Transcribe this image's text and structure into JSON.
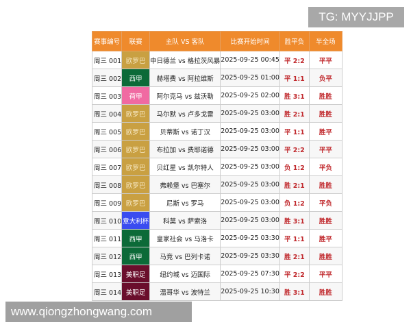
{
  "banner_tg": "TG: MYYJJPP",
  "banner_site": "www.qiongzhongwang.com",
  "colors": {
    "header": "#ef8a2c",
    "欧罗巴": "#c9a042",
    "西甲": "#0c6a38",
    "荷甲": "#f06aa2",
    "意大利杯": "#3a4cf0",
    "美职足": "#6a0e2c"
  },
  "headers": [
    "赛事编号",
    "联赛",
    "主队 VS 客队",
    "比赛开始时间",
    "胜平负",
    "半全场"
  ],
  "rows": [
    [
      "周三 001",
      "欧罗巴",
      "中日德兰 vs 格拉茨风暴",
      "2025-09-25 00:45",
      "平 2:2",
      "平平"
    ],
    [
      "周三 002",
      "西甲",
      "赫塔费 vs 阿拉维斯",
      "2025-09-25 01:00",
      "平 1:1",
      "负平"
    ],
    [
      "周三 003",
      "荷甲",
      "阿尔克马 vs 兹沃勒",
      "2025-09-25 02:00",
      "胜 3:1",
      "胜胜"
    ],
    [
      "周三 004",
      "欧罗巴",
      "马尔默 vs 卢多戈雷",
      "2025-09-25 03:00",
      "胜 2:1",
      "胜胜"
    ],
    [
      "周三 005",
      "欧罗巴",
      "贝蒂斯 vs 诺丁汉",
      "2025-09-25 03:00",
      "平 1:1",
      "胜平"
    ],
    [
      "周三 006",
      "欧罗巴",
      "布拉加 vs 费耶诺德",
      "2025-09-25 03:00",
      "平 2:2",
      "平平"
    ],
    [
      "周三 007",
      "欧罗巴",
      "贝红星 vs 凯尔特人",
      "2025-09-25 03:00",
      "负 1:2",
      "平负"
    ],
    [
      "周三 008",
      "欧罗巴",
      "弗赖堡 vs 巴塞尔",
      "2025-09-25 03:00",
      "胜 2:1",
      "胜胜"
    ],
    [
      "周三 009",
      "欧罗巴",
      "尼斯 vs 罗马",
      "2025-09-25 03:00",
      "负 1:2",
      "平负"
    ],
    [
      "周三 010",
      "意大利杯",
      "科莫 vs 萨索洛",
      "2025-09-25 03:00",
      "胜 3:1",
      "胜胜"
    ],
    [
      "周三 011",
      "西甲",
      "皇家社会 vs 马洛卡",
      "2025-09-25 03:30",
      "平 1:1",
      "胜平"
    ],
    [
      "周三 012",
      "西甲",
      "马竞 vs 巴列卡诺",
      "2025-09-25 03:30",
      "胜 2:1",
      "胜胜"
    ],
    [
      "周三 013",
      "美职足",
      "纽约城 vs 迈国际",
      "2025-09-25 07:30",
      "平 2:2",
      "平平"
    ],
    [
      "周三 014",
      "美职足",
      "温哥华 vs 波特兰",
      "2025-09-25 10:30",
      "胜 3:1",
      "胜胜"
    ]
  ]
}
